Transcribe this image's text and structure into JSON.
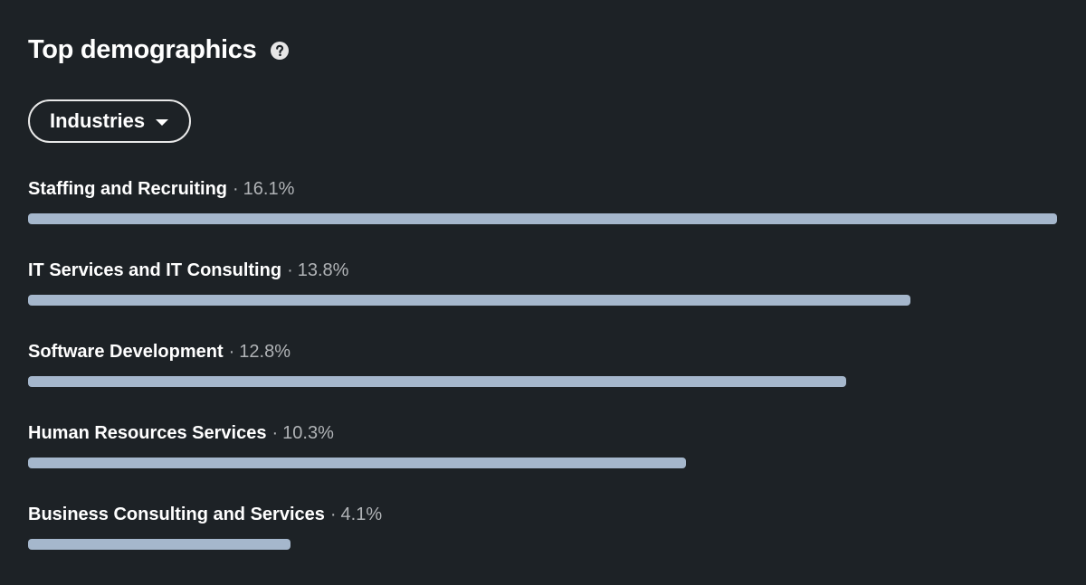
{
  "header": {
    "title": "Top demographics",
    "help_icon": "question-circle-icon"
  },
  "filter": {
    "selected": "Industries",
    "caret_icon": "caret-down-icon"
  },
  "colors": {
    "background": "#1d2226",
    "bar": "#a5b7cc",
    "text_primary": "#ffffff",
    "text_secondary": "#b0b3b6"
  },
  "chart_data": {
    "type": "bar",
    "orientation": "horizontal",
    "title": "Top demographics",
    "categories": [
      "Staffing and Recruiting",
      "IT Services and IT Consulting",
      "Software Development",
      "Human Resources Services",
      "Business Consulting and Services"
    ],
    "values": [
      16.1,
      13.8,
      12.8,
      10.3,
      4.1
    ],
    "labels": [
      "16.1%",
      "13.8%",
      "12.8%",
      "10.3%",
      "4.1%"
    ],
    "separator": "·",
    "scale_max": 16.1
  }
}
